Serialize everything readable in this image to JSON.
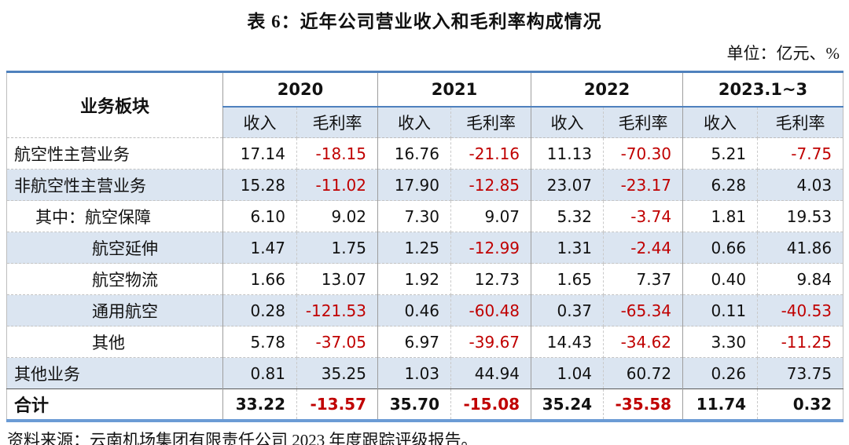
{
  "title": "表 6：近年公司营业收入和毛利率构成情况",
  "unit_note": "单位：亿元、%",
  "source_note": "资料来源：云南机场集团有限责任公司 2023 年度跟踪评级报告。",
  "colors": {
    "accent_blue_border": "#4f81bd",
    "row_shade_blue": "#dbe5f1",
    "negative_red": "#c00000",
    "text_black": "#111111"
  },
  "table": {
    "row_header": "业务板块",
    "year_groups": [
      "2020",
      "2021",
      "2022",
      "2023.1~3"
    ],
    "sub_headers": [
      "收入",
      "毛利率"
    ],
    "rows": [
      {
        "label": "航空性主营业务",
        "indent": 0,
        "is_total": false,
        "values": [
          "17.14",
          "-18.15",
          "16.76",
          "-21.16",
          "11.13",
          "-70.30",
          "5.21",
          "-7.75"
        ]
      },
      {
        "label": "非航空性主营业务",
        "indent": 0,
        "is_total": false,
        "values": [
          "15.28",
          "-11.02",
          "17.90",
          "-12.85",
          "23.07",
          "-23.17",
          "6.28",
          "4.03"
        ]
      },
      {
        "label": "其中：航空保障",
        "indent": 1,
        "is_total": false,
        "values": [
          "6.10",
          "9.02",
          "7.30",
          "9.07",
          "5.32",
          "-3.74",
          "1.81",
          "19.53"
        ]
      },
      {
        "label": "航空延伸",
        "indent": 2,
        "is_total": false,
        "values": [
          "1.47",
          "1.75",
          "1.25",
          "-12.99",
          "1.31",
          "-2.44",
          "0.66",
          "41.86"
        ]
      },
      {
        "label": "航空物流",
        "indent": 2,
        "is_total": false,
        "values": [
          "1.66",
          "13.07",
          "1.92",
          "12.73",
          "1.65",
          "7.37",
          "0.40",
          "9.84"
        ]
      },
      {
        "label": "通用航空",
        "indent": 2,
        "is_total": false,
        "values": [
          "0.28",
          "-121.53",
          "0.46",
          "-60.48",
          "0.37",
          "-65.34",
          "0.11",
          "-40.53"
        ]
      },
      {
        "label": "其他",
        "indent": 2,
        "is_total": false,
        "values": [
          "5.78",
          "-37.05",
          "6.97",
          "-39.67",
          "14.43",
          "-34.62",
          "3.30",
          "-11.25"
        ]
      },
      {
        "label": "其他业务",
        "indent": 0,
        "is_total": false,
        "values": [
          "0.81",
          "35.25",
          "1.03",
          "44.94",
          "1.04",
          "60.72",
          "0.26",
          "73.75"
        ]
      },
      {
        "label": "合计",
        "indent": 0,
        "is_total": true,
        "values": [
          "33.22",
          "-13.57",
          "35.70",
          "-15.08",
          "35.24",
          "-35.58",
          "11.74",
          "0.32"
        ]
      }
    ]
  }
}
